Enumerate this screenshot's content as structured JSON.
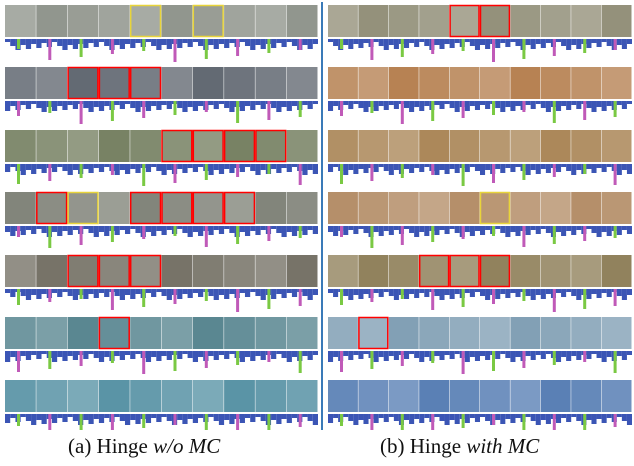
{
  "panels": [
    {
      "caption": {
        "prefix": "(a) Hinge",
        "emphasis": "w/o MC"
      }
    },
    {
      "caption": {
        "prefix": "(b) Hinge",
        "emphasis": "with MC"
      }
    }
  ]
}
